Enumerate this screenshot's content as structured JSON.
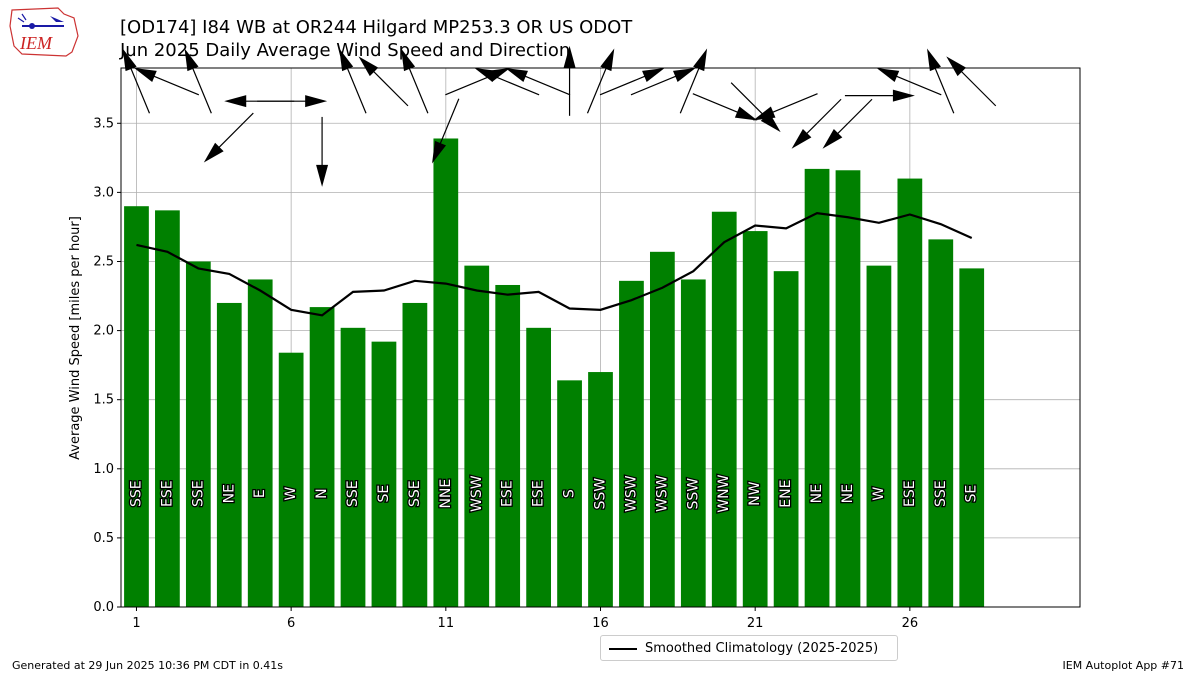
{
  "header": {
    "title": "[OD174] I84 WB at OR244 Hilgard MP253.3  OR US ODOT",
    "subtitle": "Jun 2025 Daily Average Wind Speed and Direction"
  },
  "logo": {
    "text": "IEM",
    "icon": "iem-iowa-logo"
  },
  "footer": {
    "left": "Generated at 29 Jun 2025 10:36 PM CDT in 0.41s",
    "right": "IEM Autoplot App #71"
  },
  "legend": {
    "label": "Smoothed Climatology (2025-2025)"
  },
  "colors": {
    "bar": "#008000",
    "climatology": "#000000",
    "grid": "#b0b0b0"
  },
  "chart_data": {
    "type": "bar",
    "ylabel": "Average Wind Speed [miles per hour]",
    "xlim": [
      0.5,
      31.5
    ],
    "ylim": [
      0.0,
      3.9
    ],
    "xticks": [
      1,
      6,
      11,
      16,
      21,
      26
    ],
    "yticks": [
      0.0,
      0.5,
      1.0,
      1.5,
      2.0,
      2.5,
      3.0,
      3.5
    ],
    "grid": true,
    "legend_position": "bottom-center",
    "days": [
      1,
      2,
      3,
      4,
      5,
      6,
      7,
      8,
      9,
      10,
      11,
      12,
      13,
      14,
      15,
      16,
      17,
      18,
      19,
      20,
      21,
      22,
      23,
      24,
      25,
      26,
      27,
      28
    ],
    "series": [
      {
        "name": "Daily Average Wind Speed",
        "type": "bar",
        "values": [
          2.9,
          2.87,
          2.5,
          2.2,
          2.37,
          1.84,
          2.17,
          2.02,
          1.92,
          2.2,
          3.39,
          2.47,
          2.33,
          2.02,
          1.64,
          1.7,
          2.36,
          2.57,
          2.37,
          2.86,
          2.72,
          2.43,
          3.17,
          3.16,
          2.47,
          3.1,
          2.66,
          2.45
        ],
        "directions": [
          "SSE",
          "ESE",
          "SSE",
          "NE",
          "E",
          "W",
          "N",
          "SSE",
          "SE",
          "SSE",
          "NNE",
          "WSW",
          "ESE",
          "ESE",
          "S",
          "SSW",
          "WSW",
          "WSW",
          "SSW",
          "WNW",
          "NW",
          "ENE",
          "NE",
          "NE",
          "W",
          "ESE",
          "SSE",
          "SE"
        ]
      },
      {
        "name": "Smoothed Climatology (2025-2025)",
        "type": "line",
        "values": [
          2.62,
          2.57,
          2.45,
          2.41,
          2.29,
          2.15,
          2.11,
          2.28,
          2.29,
          2.36,
          2.34,
          2.29,
          2.26,
          2.28,
          2.16,
          2.15,
          2.22,
          2.31,
          2.43,
          2.64,
          2.76,
          2.74,
          2.85,
          2.82,
          2.78,
          2.84,
          2.77,
          2.67
        ]
      }
    ],
    "arrow_directions_deg": [
      157.5,
      112.5,
      157.5,
      45,
      90,
      270,
      0,
      157.5,
      135,
      157.5,
      22.5,
      247.5,
      112.5,
      112.5,
      180,
      202.5,
      247.5,
      247.5,
      202.5,
      292.5,
      315,
      67.5,
      45,
      45,
      270,
      112.5,
      157.5,
      135
    ]
  }
}
